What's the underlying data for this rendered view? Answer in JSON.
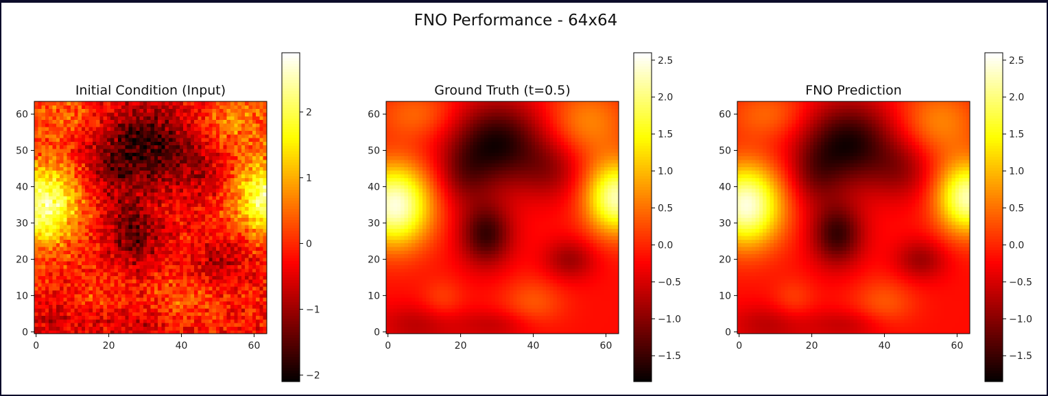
{
  "figure": {
    "title": "FNO Performance - 64x64"
  },
  "chart_data": [
    {
      "type": "heatmap",
      "title": "Initial Condition (Input)",
      "colormap": "hot",
      "grid_size": 64,
      "xlim": [
        0,
        63
      ],
      "ylim": [
        0,
        63
      ],
      "x_ticks": [
        0,
        20,
        40,
        60
      ],
      "y_ticks": [
        0,
        10,
        20,
        30,
        40,
        50,
        60
      ],
      "colorbar": {
        "min": -2.1,
        "max": 2.9,
        "ticks": [
          -2,
          -1,
          0,
          1,
          2
        ],
        "tick_labels": [
          "−2",
          "−1",
          "0",
          "1",
          "2"
        ]
      },
      "field": "noisy",
      "field_description_values": {
        "hot_left_center": [
          2,
          36
        ],
        "hot_right_center": [
          63,
          38
        ],
        "cold_center_top": [
          30,
          52
        ],
        "cold_center_mid": [
          27,
          27
        ]
      }
    },
    {
      "type": "heatmap",
      "title": "Ground Truth (t=0.5)",
      "colormap": "hot",
      "grid_size": 64,
      "xlim": [
        0,
        63
      ],
      "ylim": [
        0,
        63
      ],
      "x_ticks": [
        0,
        20,
        40,
        60
      ],
      "y_ticks": [
        0,
        10,
        20,
        30,
        40,
        50,
        60
      ],
      "colorbar": {
        "min": -1.85,
        "max": 2.6,
        "ticks": [
          -1.5,
          -1.0,
          -0.5,
          0.0,
          0.5,
          1.0,
          1.5,
          2.0,
          2.5
        ],
        "tick_labels": [
          "−1.5",
          "−1.0",
          "−0.5",
          "0.0",
          "0.5",
          "1.0",
          "1.5",
          "2.0",
          "2.5"
        ]
      },
      "field": "smooth"
    },
    {
      "type": "heatmap",
      "title": "FNO Prediction",
      "colormap": "hot",
      "grid_size": 64,
      "xlim": [
        0,
        63
      ],
      "ylim": [
        0,
        63
      ],
      "x_ticks": [
        0,
        20,
        40,
        60
      ],
      "y_ticks": [
        0,
        10,
        20,
        30,
        40,
        50,
        60
      ],
      "colorbar": {
        "min": -1.85,
        "max": 2.6,
        "ticks": [
          -1.5,
          -1.0,
          -0.5,
          0.0,
          0.5,
          1.0,
          1.5,
          2.0,
          2.5
        ],
        "tick_labels": [
          "−1.5",
          "−1.0",
          "−0.5",
          "0.0",
          "0.5",
          "1.0",
          "1.5",
          "2.0",
          "2.5"
        ]
      },
      "field": "smooth"
    }
  ]
}
